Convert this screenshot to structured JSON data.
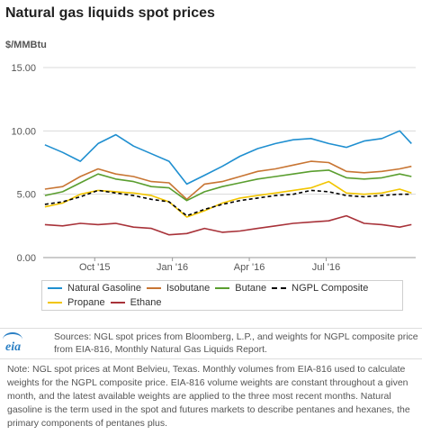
{
  "title": "Natural gas liquids spot prices",
  "unit": "$/MMBtu",
  "legend": {
    "items": [
      {
        "label": "Natural Gasoline",
        "color": "#1f8fd0",
        "dash": false
      },
      {
        "label": "Isobutane",
        "color": "#c87533",
        "dash": false
      },
      {
        "label": "Butane",
        "color": "#5a9e2f",
        "dash": false
      },
      {
        "label": "NGPL Composite",
        "color": "#000000",
        "dash": true
      },
      {
        "label": "Propane",
        "color": "#f2c500",
        "dash": false
      },
      {
        "label": "Ethane",
        "color": "#a83239",
        "dash": false
      }
    ]
  },
  "sources": {
    "logo": "eia",
    "text": "Sources: NGL spot prices from Bloomberg, L.P., and weights for NGPL composite price from EIA-816, Monthly Natural Gas Liquids Report."
  },
  "note": {
    "text": "Note: NGL spot prices at Mont Belvieu, Texas. Monthly volumes from EIA-816 used to calculate weights for the NGPL composite price. EIA-816 volume weights are constant throughout a given month, and the latest available weights are applied to the three most recent months. Natural gasoline is the term used in the spot and futures markets to describe pentanes and hexanes, the primary components of pentanes plus."
  },
  "chart_data": {
    "type": "line",
    "ylabel": "$/MMBtu",
    "ylim": [
      0,
      15
    ],
    "yticks": [
      "0.00",
      "5.00",
      "10.00",
      "15.00"
    ],
    "xlim": [
      "2015-08-01",
      "2016-10-15"
    ],
    "xticks": [
      {
        "date": "2015-10-01",
        "label": "Oct '15"
      },
      {
        "date": "2016-01-01",
        "label": "Jan '16"
      },
      {
        "date": "2016-04-01",
        "label": "Apr '16"
      },
      {
        "date": "2016-07-01",
        "label": "Jul '16"
      }
    ],
    "grid": "horizontal",
    "legend_position": "bottom",
    "x": [
      "2015-08-03",
      "2015-08-24",
      "2015-09-14",
      "2015-10-05",
      "2015-10-26",
      "2015-11-16",
      "2015-12-07",
      "2015-12-28",
      "2016-01-18",
      "2016-02-08",
      "2016-02-29",
      "2016-03-21",
      "2016-04-11",
      "2016-05-02",
      "2016-05-23",
      "2016-06-13",
      "2016-07-04",
      "2016-07-25",
      "2016-08-15",
      "2016-09-05",
      "2016-09-26",
      "2016-10-10"
    ],
    "series": [
      {
        "name": "Natural Gasoline",
        "color": "#1f8fd0",
        "values": [
          8.9,
          8.3,
          7.6,
          9.0,
          9.7,
          8.8,
          8.2,
          7.6,
          5.8,
          6.5,
          7.2,
          8.0,
          8.6,
          9.0,
          9.3,
          9.4,
          9.0,
          8.7,
          9.2,
          9.4,
          10.0,
          9.0
        ]
      },
      {
        "name": "Isobutane",
        "color": "#c87533",
        "values": [
          5.4,
          5.6,
          6.4,
          7.0,
          6.6,
          6.4,
          6.0,
          5.9,
          4.6,
          5.8,
          6.0,
          6.4,
          6.8,
          7.0,
          7.3,
          7.6,
          7.5,
          6.8,
          6.7,
          6.8,
          7.0,
          7.2
        ]
      },
      {
        "name": "Butane",
        "color": "#5a9e2f",
        "values": [
          4.9,
          5.2,
          5.9,
          6.6,
          6.2,
          6.0,
          5.6,
          5.5,
          4.5,
          5.2,
          5.6,
          5.9,
          6.2,
          6.4,
          6.6,
          6.8,
          6.9,
          6.3,
          6.2,
          6.3,
          6.6,
          6.4
        ]
      },
      {
        "name": "NGPL Composite",
        "color": "#000000",
        "values": [
          4.2,
          4.4,
          4.8,
          5.3,
          5.1,
          4.9,
          4.6,
          4.4,
          3.3,
          3.8,
          4.2,
          4.5,
          4.7,
          4.9,
          5.0,
          5.3,
          5.2,
          4.9,
          4.8,
          4.9,
          5.0,
          5.0
        ]
      },
      {
        "name": "Propane",
        "color": "#f2c500",
        "values": [
          4.0,
          4.3,
          5.0,
          5.3,
          5.2,
          5.1,
          4.9,
          4.4,
          3.2,
          3.7,
          4.3,
          4.7,
          4.9,
          5.1,
          5.3,
          5.5,
          6.0,
          5.1,
          5.0,
          5.1,
          5.4,
          5.1
        ]
      },
      {
        "name": "Ethane",
        "color": "#a83239",
        "values": [
          2.6,
          2.5,
          2.7,
          2.6,
          2.7,
          2.4,
          2.3,
          1.8,
          1.9,
          2.3,
          2.0,
          2.1,
          2.3,
          2.5,
          2.7,
          2.8,
          2.9,
          3.3,
          2.7,
          2.6,
          2.4,
          2.6
        ]
      }
    ]
  }
}
